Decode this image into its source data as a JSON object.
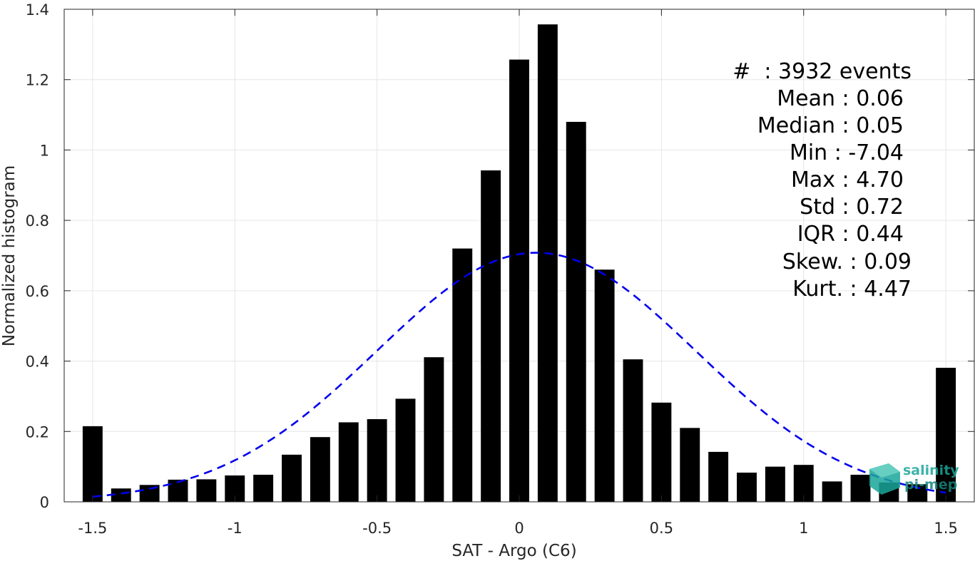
{
  "chart_data": {
    "type": "bar",
    "xlabel": "SAT - Argo (C6)",
    "ylabel": "Normalized histogram",
    "xlim": [
      -1.6,
      1.6
    ],
    "ylim": [
      0,
      1.4
    ],
    "xticks": [
      -1.5,
      -1,
      -0.5,
      0,
      0.5,
      1,
      1.5
    ],
    "xtick_labels": [
      "-1.5",
      "-1",
      "-0.5",
      "0",
      "0.5",
      "1",
      "1.5"
    ],
    "yticks": [
      0,
      0.2,
      0.4,
      0.6,
      0.8,
      1,
      1.2,
      1.4
    ],
    "ytick_labels": [
      "0",
      "0.2",
      "0.4",
      "0.6",
      "0.8",
      "1",
      "1.2",
      "1.4"
    ],
    "grid": true,
    "bar_width": 0.07,
    "x": [
      -1.5,
      -1.4,
      -1.3,
      -1.2,
      -1.1,
      -1.0,
      -0.9,
      -0.8,
      -0.7,
      -0.6,
      -0.5,
      -0.4,
      -0.3,
      -0.2,
      -0.1,
      0.0,
      0.1,
      0.2,
      0.3,
      0.4,
      0.5,
      0.6,
      0.7,
      0.8,
      0.9,
      1.0,
      1.1,
      1.2,
      1.3,
      1.4,
      1.5
    ],
    "values": [
      0.215,
      0.038,
      0.048,
      0.063,
      0.064,
      0.075,
      0.077,
      0.134,
      0.184,
      0.226,
      0.235,
      0.293,
      0.411,
      0.72,
      0.942,
      1.257,
      1.357,
      1.08,
      0.66,
      0.405,
      0.282,
      0.21,
      0.142,
      0.083,
      0.1,
      0.105,
      0.058,
      0.077,
      0.055,
      0.05,
      0.381
    ],
    "fit": {
      "type": "normal",
      "mean": 0.06,
      "std": 0.56,
      "peak": 0.708,
      "x_range": [
        -1.5,
        1.5
      ],
      "color": "#0000ee",
      "style": "dashed"
    },
    "bar_color": "#000000",
    "stats": {
      "count_line": "#  : 3932 events",
      "lines": [
        "Mean : 0.06",
        "Median : 0.05",
        "Min : -7.04",
        "Max : 4.70",
        "Std : 0.72",
        "IQR : 0.44"
      ],
      "skew_line": "Skew. : 0.09",
      "kurt_line": "Kurt. : 4.47"
    }
  },
  "logo": {
    "line1": "salinity",
    "line2": "pi-mep",
    "color": "#1aa69a"
  }
}
